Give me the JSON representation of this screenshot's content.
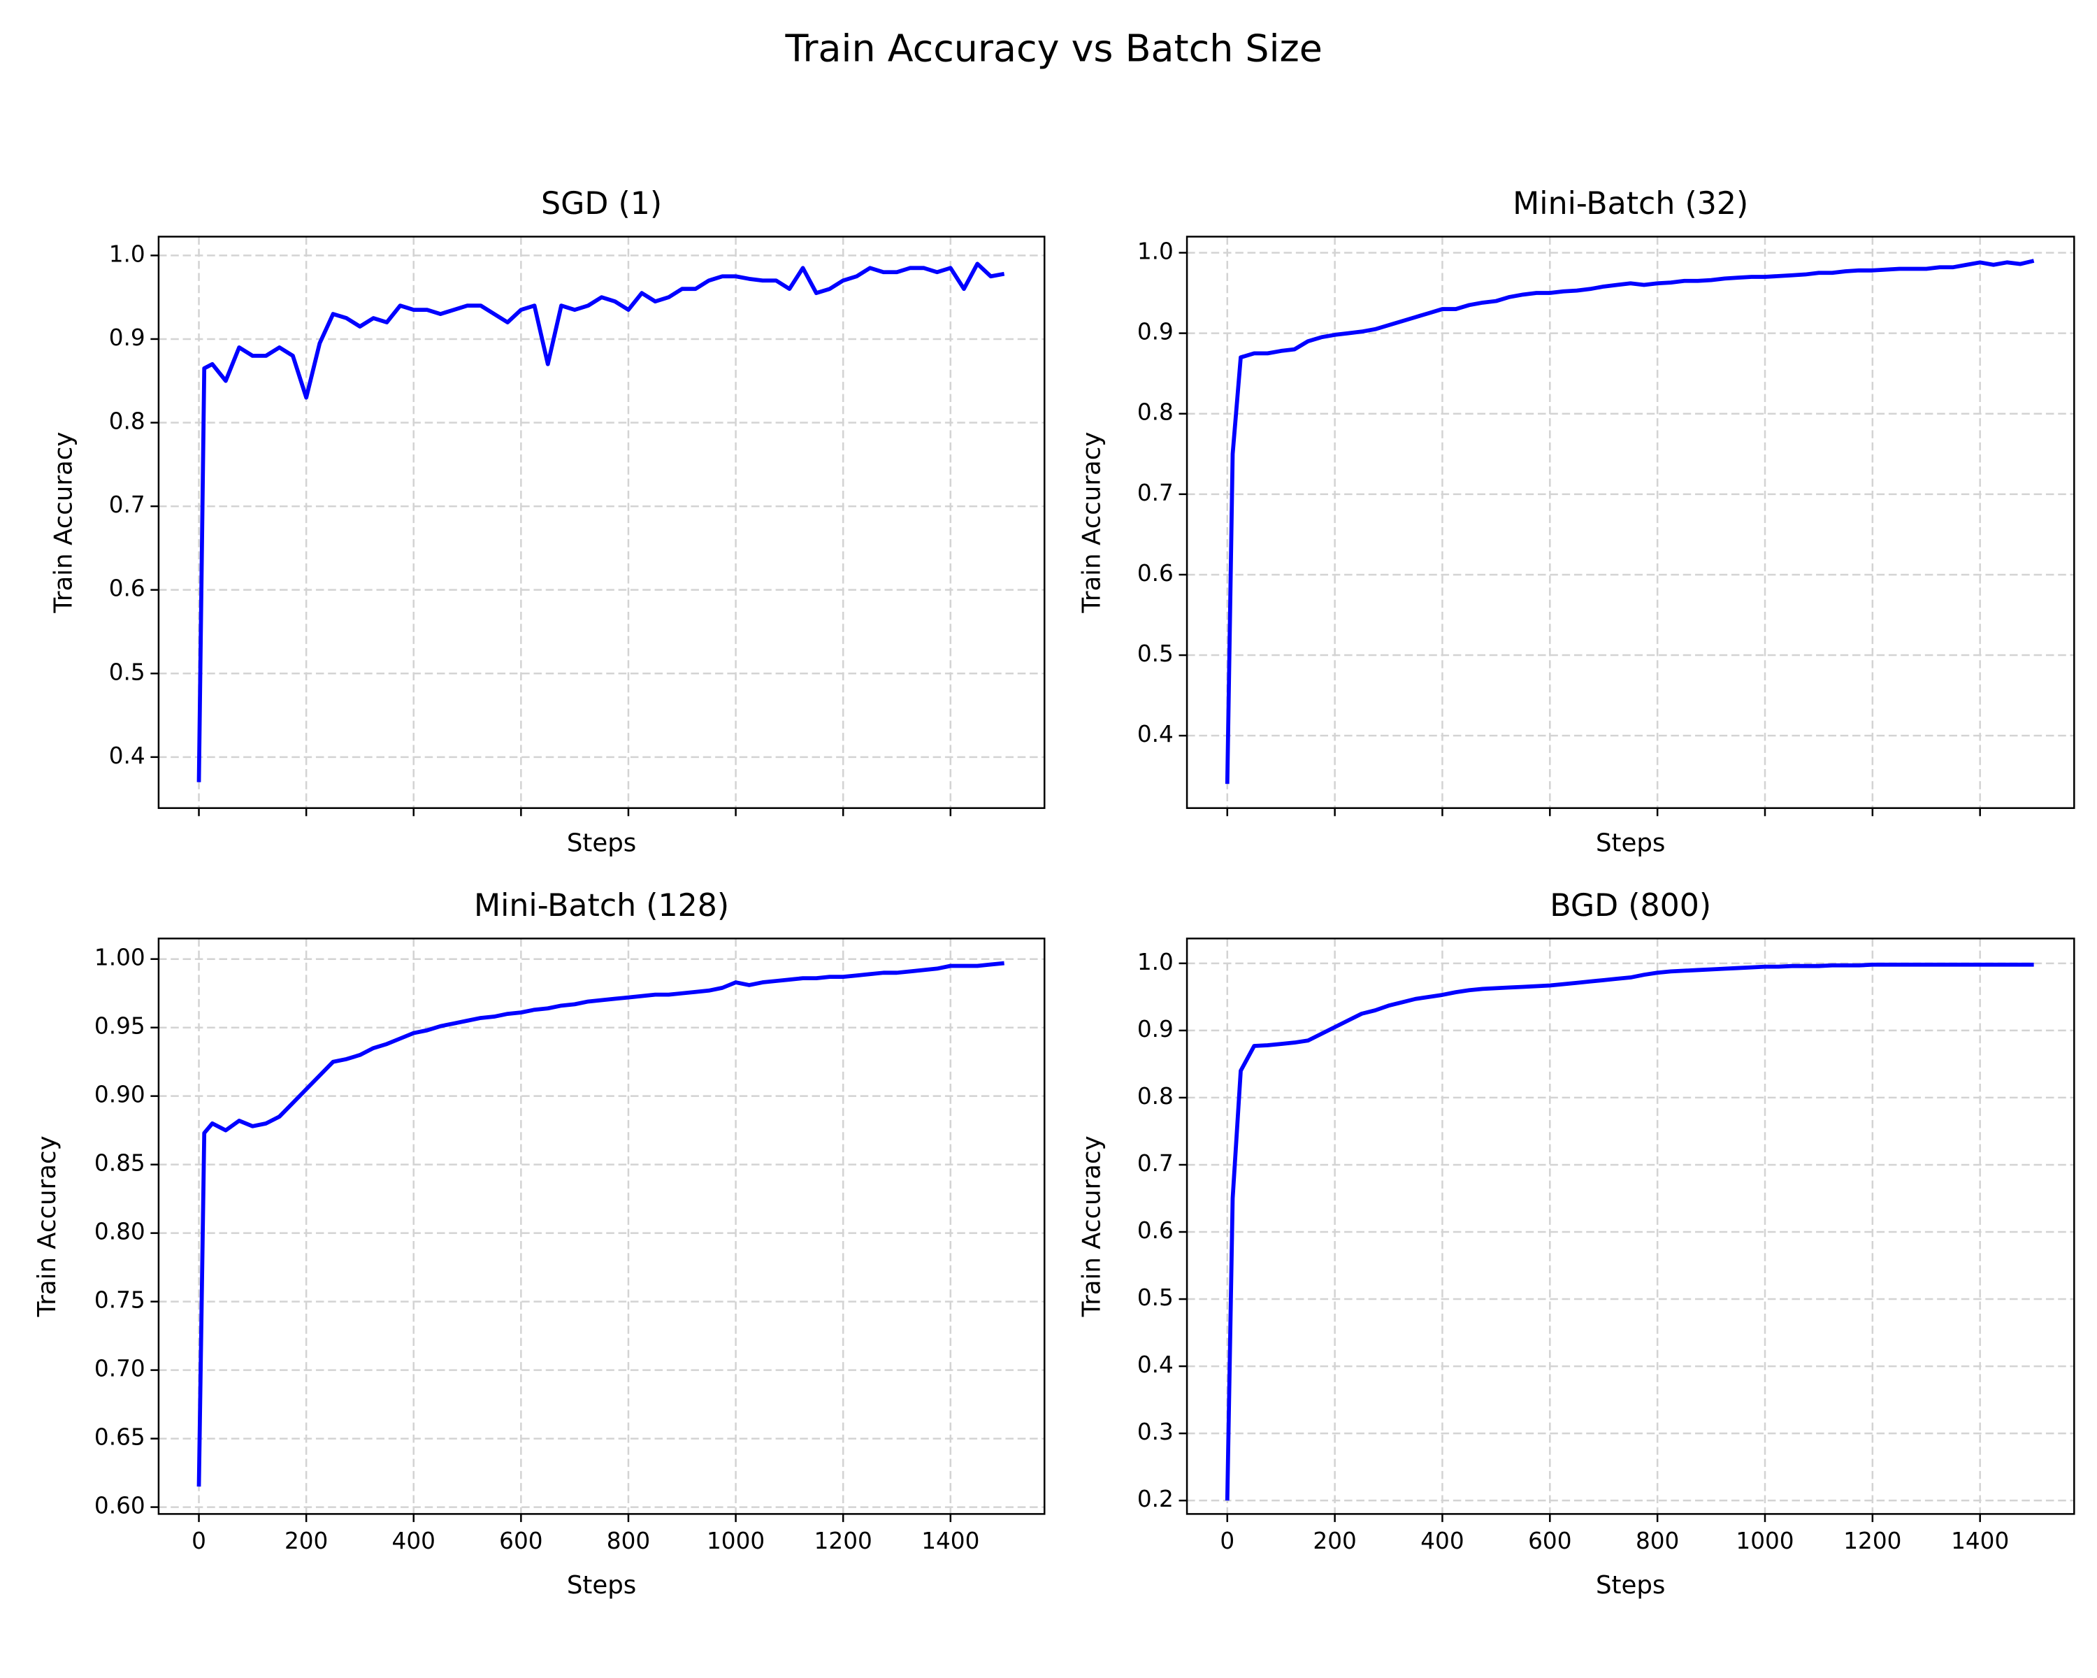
{
  "title": "Train Accuracy vs Batch Size",
  "chart_data": [
    {
      "type": "line",
      "title": "SGD (1)",
      "xlabel": "Steps",
      "ylabel": "Train Accuracy",
      "color": "#0000ff",
      "grid": true,
      "show_xticklabels": false,
      "x": [
        0,
        10,
        25,
        50,
        75,
        100,
        125,
        150,
        175,
        200,
        225,
        250,
        275,
        300,
        325,
        350,
        375,
        400,
        425,
        450,
        475,
        500,
        525,
        550,
        575,
        600,
        625,
        650,
        675,
        700,
        725,
        750,
        775,
        800,
        825,
        850,
        875,
        900,
        925,
        950,
        975,
        1000,
        1025,
        1050,
        1075,
        1100,
        1125,
        1150,
        1175,
        1200,
        1225,
        1250,
        1275,
        1300,
        1325,
        1350,
        1375,
        1400,
        1425,
        1450,
        1475,
        1500
      ],
      "values": [
        0.37,
        0.865,
        0.87,
        0.85,
        0.89,
        0.88,
        0.88,
        0.89,
        0.88,
        0.83,
        0.895,
        0.93,
        0.925,
        0.915,
        0.925,
        0.92,
        0.94,
        0.935,
        0.935,
        0.93,
        0.935,
        0.94,
        0.94,
        0.93,
        0.92,
        0.935,
        0.94,
        0.87,
        0.94,
        0.935,
        0.94,
        0.95,
        0.945,
        0.935,
        0.955,
        0.945,
        0.95,
        0.96,
        0.96,
        0.97,
        0.975,
        0.975,
        0.972,
        0.97,
        0.97,
        0.96,
        0.985,
        0.955,
        0.96,
        0.97,
        0.975,
        0.985,
        0.98,
        0.98,
        0.985,
        0.985,
        0.98,
        0.985,
        0.96,
        0.99,
        0.975,
        0.978
      ],
      "xlim": [
        -75,
        1575
      ],
      "xticks": [
        0,
        200,
        400,
        600,
        800,
        1000,
        1200,
        1400
      ],
      "ylim": [
        0.339,
        1.0225
      ],
      "yticks": [
        0.4,
        0.5,
        0.6,
        0.7,
        0.8,
        0.9,
        {
          "value": 1,
          "label": "1.0"
        }
      ]
    },
    {
      "type": "line",
      "title": "Mini-Batch (32)",
      "xlabel": "Steps",
      "ylabel": "Train Accuracy",
      "color": "#0000ff",
      "grid": true,
      "show_xticklabels": false,
      "x": [
        0,
        10,
        25,
        50,
        75,
        100,
        125,
        150,
        175,
        200,
        225,
        250,
        275,
        300,
        325,
        350,
        375,
        400,
        425,
        450,
        475,
        500,
        525,
        550,
        575,
        600,
        625,
        650,
        675,
        700,
        725,
        750,
        775,
        800,
        825,
        850,
        875,
        900,
        925,
        950,
        975,
        1000,
        1025,
        1050,
        1075,
        1100,
        1125,
        1150,
        1175,
        1200,
        1225,
        1250,
        1275,
        1300,
        1325,
        1350,
        1375,
        1400,
        1425,
        1450,
        1475,
        1500
      ],
      "values": [
        0.34,
        0.75,
        0.87,
        0.875,
        0.875,
        0.878,
        0.88,
        0.89,
        0.895,
        0.898,
        0.9,
        0.902,
        0.905,
        0.91,
        0.915,
        0.92,
        0.925,
        0.93,
        0.93,
        0.935,
        0.938,
        0.94,
        0.945,
        0.948,
        0.95,
        0.95,
        0.952,
        0.953,
        0.955,
        0.958,
        0.96,
        0.962,
        0.96,
        0.962,
        0.963,
        0.965,
        0.965,
        0.966,
        0.968,
        0.969,
        0.97,
        0.97,
        0.971,
        0.972,
        0.973,
        0.975,
        0.975,
        0.977,
        0.978,
        0.978,
        0.979,
        0.98,
        0.98,
        0.98,
        0.982,
        0.982,
        0.985,
        0.988,
        0.985,
        0.988,
        0.986,
        0.99
      ],
      "xlim": [
        -75,
        1575
      ],
      "xticks": [
        0,
        200,
        400,
        600,
        800,
        1000,
        1200,
        1400
      ],
      "ylim": [
        0.31,
        1.02
      ],
      "yticks": [
        0.4,
        0.5,
        0.6,
        0.7,
        0.8,
        0.9,
        {
          "value": 1,
          "label": "1.0"
        }
      ]
    },
    {
      "type": "line",
      "title": "Mini-Batch (128)",
      "xlabel": "Steps",
      "ylabel": "Train Accuracy",
      "color": "#0000ff",
      "grid": true,
      "show_xticklabels": true,
      "x": [
        0,
        10,
        25,
        50,
        75,
        100,
        125,
        150,
        175,
        200,
        225,
        250,
        275,
        300,
        325,
        350,
        375,
        400,
        425,
        450,
        475,
        500,
        525,
        550,
        575,
        600,
        625,
        650,
        675,
        700,
        725,
        750,
        775,
        800,
        825,
        850,
        875,
        900,
        925,
        950,
        975,
        1000,
        1025,
        1050,
        1075,
        1100,
        1125,
        1150,
        1175,
        1200,
        1225,
        1250,
        1275,
        1300,
        1325,
        1350,
        1375,
        1400,
        1425,
        1450,
        1475,
        1500
      ],
      "values": [
        0.615,
        0.873,
        0.88,
        0.875,
        0.882,
        0.878,
        0.88,
        0.885,
        0.895,
        0.905,
        0.915,
        0.925,
        0.927,
        0.93,
        0.935,
        0.938,
        0.942,
        0.946,
        0.948,
        0.951,
        0.953,
        0.955,
        0.957,
        0.958,
        0.96,
        0.961,
        0.963,
        0.964,
        0.966,
        0.967,
        0.969,
        0.97,
        0.971,
        0.972,
        0.973,
        0.974,
        0.974,
        0.975,
        0.976,
        0.977,
        0.979,
        0.983,
        0.981,
        0.983,
        0.984,
        0.985,
        0.986,
        0.986,
        0.987,
        0.987,
        0.988,
        0.989,
        0.99,
        0.99,
        0.991,
        0.992,
        0.993,
        0.995,
        0.995,
        0.995,
        0.996,
        0.997
      ],
      "xlim": [
        -75,
        1575
      ],
      "xticks": [
        0,
        200,
        400,
        600,
        800,
        1000,
        1200,
        1400
      ],
      "ylim": [
        0.595,
        1.015
      ],
      "yticks": [
        {
          "value": 0.6,
          "label": "0.60"
        },
        0.65,
        {
          "value": 0.7,
          "label": "0.70"
        },
        0.75,
        {
          "value": 0.8,
          "label": "0.80"
        },
        0.85,
        {
          "value": 0.9,
          "label": "0.90"
        },
        0.95,
        {
          "value": 1,
          "label": "1.00"
        }
      ]
    },
    {
      "type": "line",
      "title": "BGD (800)",
      "xlabel": "Steps",
      "ylabel": "Train Accuracy",
      "color": "#0000ff",
      "grid": true,
      "show_xticklabels": true,
      "x": [
        0,
        10,
        25,
        50,
        75,
        100,
        125,
        150,
        175,
        200,
        225,
        250,
        275,
        300,
        325,
        350,
        375,
        400,
        425,
        450,
        475,
        500,
        525,
        550,
        575,
        600,
        625,
        650,
        675,
        700,
        725,
        750,
        775,
        800,
        825,
        850,
        875,
        900,
        925,
        950,
        975,
        1000,
        1025,
        1050,
        1075,
        1100,
        1125,
        1150,
        1175,
        1200,
        1225,
        1250,
        1275,
        1300,
        1325,
        1350,
        1375,
        1400,
        1425,
        1450,
        1475,
        1500
      ],
      "values": [
        0.2,
        0.65,
        0.84,
        0.877,
        0.878,
        0.88,
        0.882,
        0.885,
        0.895,
        0.905,
        0.915,
        0.925,
        0.93,
        0.937,
        0.942,
        0.947,
        0.95,
        0.953,
        0.957,
        0.96,
        0.962,
        0.963,
        0.964,
        0.965,
        0.966,
        0.967,
        0.969,
        0.971,
        0.973,
        0.975,
        0.977,
        0.979,
        0.983,
        0.986,
        0.988,
        0.989,
        0.99,
        0.991,
        0.992,
        0.993,
        0.994,
        0.995,
        0.995,
        0.996,
        0.996,
        0.996,
        0.997,
        0.997,
        0.997,
        0.998,
        0.998,
        0.998,
        0.998,
        0.998,
        0.998,
        0.998,
        0.998,
        0.998,
        0.998,
        0.998,
        0.998,
        0.998
      ],
      "xlim": [
        -75,
        1575
      ],
      "xticks": [
        0,
        200,
        400,
        600,
        800,
        1000,
        1200,
        1400
      ],
      "ylim": [
        0.18,
        1.037
      ],
      "yticks": [
        0.2,
        0.3,
        0.4,
        0.5,
        0.6,
        0.7,
        0.8,
        0.9,
        {
          "value": 1,
          "label": "1.0"
        }
      ]
    }
  ]
}
